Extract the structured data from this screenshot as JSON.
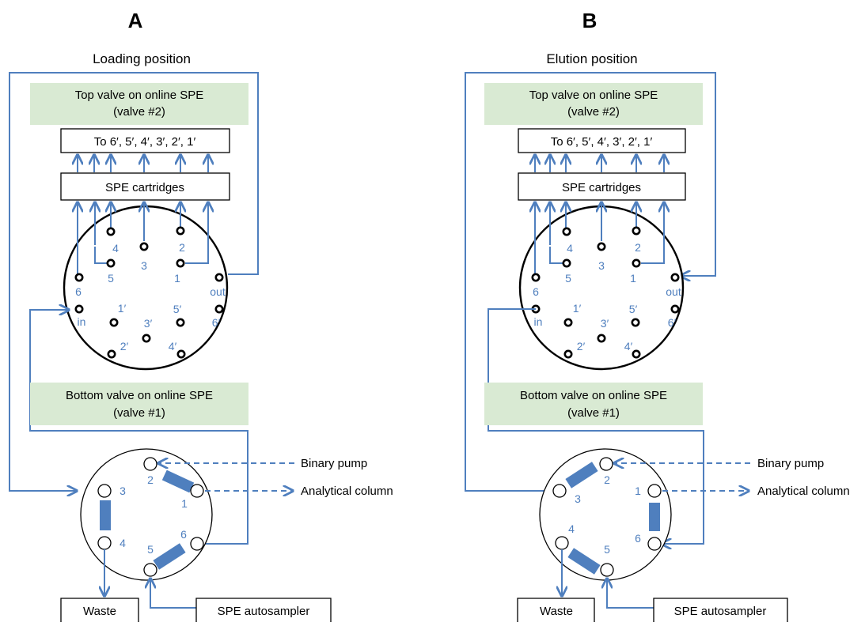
{
  "colors": {
    "line": "#4f7fbe",
    "green_box": "#d9ead3",
    "outline": "#000000"
  },
  "panels": [
    {
      "letter": "A",
      "position_title": "Loading position",
      "top_valve": {
        "line1": "Top valve on online SPE",
        "line2": "(valve #2)"
      },
      "outlet_box": "To 6′, 5′, 4′, 3′, 2′, 1′",
      "cartridge_box": "SPE cartridges",
      "big_ports": [
        "4",
        "2",
        "3",
        "5",
        "1",
        "6",
        "out",
        "in",
        "1′",
        "5′",
        "6′",
        "3′",
        "2′",
        "4′"
      ],
      "bottom_valve": {
        "line1": "Bottom valve on online SPE",
        "line2": "(valve #1)"
      },
      "small_ports": [
        "2",
        "1",
        "3",
        "4",
        "5",
        "6"
      ],
      "binary_pump": "Binary pump",
      "analytical_column": "Analytical column",
      "waste": "Waste",
      "spe_autosampler": "SPE autosampler"
    },
    {
      "letter": "B",
      "position_title": "Elution position",
      "top_valve": {
        "line1": "Top valve on online SPE",
        "line2": "(valve #2)"
      },
      "outlet_box": "To 6′, 5′, 4′, 3′, 2′, 1′",
      "cartridge_box": "SPE cartridges",
      "big_ports": [
        "4",
        "2",
        "3",
        "5",
        "1",
        "6",
        "out",
        "in",
        "1′",
        "5′",
        "6′",
        "3′",
        "2′",
        "4′"
      ],
      "bottom_valve": {
        "line1": "Bottom valve on online SPE",
        "line2": "(valve #1)"
      },
      "small_ports": [
        "2",
        "1",
        "3",
        "4",
        "5",
        "6"
      ],
      "binary_pump": "Binary pump",
      "analytical_column": "Analytical column",
      "waste": "Waste",
      "spe_autosampler": "SPE autosampler"
    }
  ]
}
